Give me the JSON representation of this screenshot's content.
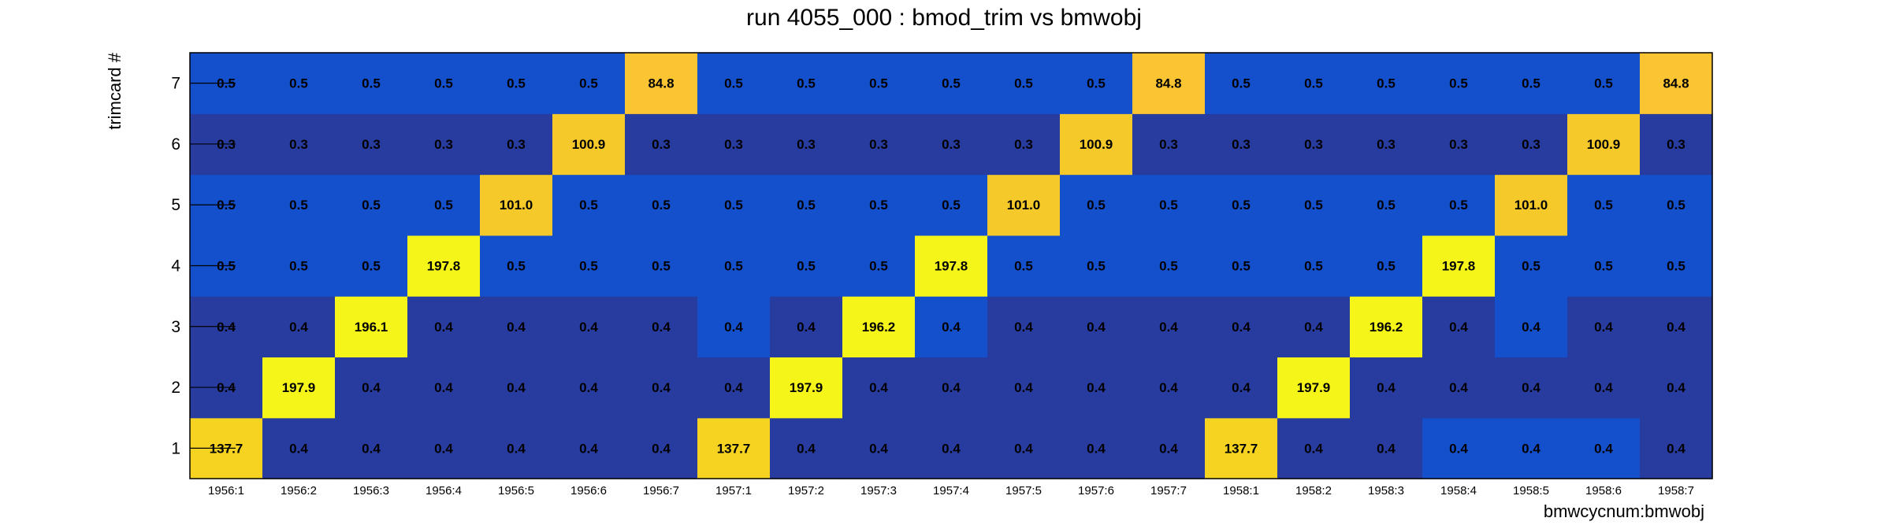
{
  "chart_data": {
    "type": "heatmap",
    "title": "run 4055_000 : bmod_trim vs bmwobj",
    "xlabel": "bmwcycnum:bmwobj",
    "ylabel": "trimcard #",
    "x_categories": [
      "1956:1",
      "1956:2",
      "1956:3",
      "1956:4",
      "1956:5",
      "1956:6",
      "1956:7",
      "1957:1",
      "1957:2",
      "1957:3",
      "1957:4",
      "1957:5",
      "1957:6",
      "1957:7",
      "1958:1",
      "1958:2",
      "1958:3",
      "1958:4",
      "1958:5",
      "1958:6",
      "1958:7"
    ],
    "y_categories": [
      "1",
      "2",
      "3",
      "4",
      "5",
      "6",
      "7"
    ],
    "values": [
      [
        137.7,
        0.4,
        0.4,
        0.4,
        0.4,
        0.4,
        0.4,
        137.7,
        0.4,
        0.4,
        0.4,
        0.4,
        0.4,
        0.4,
        137.7,
        0.4,
        0.4,
        0.4,
        0.4,
        0.4,
        0.4
      ],
      [
        0.4,
        197.9,
        0.4,
        0.4,
        0.4,
        0.4,
        0.4,
        0.4,
        197.9,
        0.4,
        0.4,
        0.4,
        0.4,
        0.4,
        0.4,
        197.9,
        0.4,
        0.4,
        0.4,
        0.4,
        0.4
      ],
      [
        0.4,
        0.4,
        196.1,
        0.4,
        0.4,
        0.4,
        0.4,
        0.4,
        0.4,
        196.2,
        0.4,
        0.4,
        0.4,
        0.4,
        0.4,
        0.4,
        196.2,
        0.4,
        0.4,
        0.4,
        0.4
      ],
      [
        0.5,
        0.5,
        0.5,
        197.8,
        0.5,
        0.5,
        0.5,
        0.5,
        0.5,
        0.5,
        197.8,
        0.5,
        0.5,
        0.5,
        0.5,
        0.5,
        0.5,
        197.8,
        0.5,
        0.5,
        0.5
      ],
      [
        0.5,
        0.5,
        0.5,
        0.5,
        101.0,
        0.5,
        0.5,
        0.5,
        0.5,
        0.5,
        0.5,
        101.0,
        0.5,
        0.5,
        0.5,
        0.5,
        0.5,
        0.5,
        101.0,
        0.5,
        0.5
      ],
      [
        0.3,
        0.3,
        0.3,
        0.3,
        0.3,
        100.9,
        0.3,
        0.3,
        0.3,
        0.3,
        0.3,
        0.3,
        100.9,
        0.3,
        0.3,
        0.3,
        0.3,
        0.3,
        0.3,
        100.9,
        0.3
      ],
      [
        0.5,
        0.5,
        0.5,
        0.5,
        0.5,
        0.5,
        84.8,
        0.5,
        0.5,
        0.5,
        0.5,
        0.5,
        0.5,
        84.8,
        0.5,
        0.5,
        0.5,
        0.5,
        0.5,
        0.5,
        84.8
      ]
    ],
    "value_labels": [
      [
        "137.7",
        "0.4",
        "0.4",
        "0.4",
        "0.4",
        "0.4",
        "0.4",
        "137.7",
        "0.4",
        "0.4",
        "0.4",
        "0.4",
        "0.4",
        "0.4",
        "137.7",
        "0.4",
        "0.4",
        "0.4",
        "0.4",
        "0.4",
        "0.4"
      ],
      [
        "0.4",
        "197.9",
        "0.4",
        "0.4",
        "0.4",
        "0.4",
        "0.4",
        "0.4",
        "197.9",
        "0.4",
        "0.4",
        "0.4",
        "0.4",
        "0.4",
        "0.4",
        "197.9",
        "0.4",
        "0.4",
        "0.4",
        "0.4",
        "0.4"
      ],
      [
        "0.4",
        "0.4",
        "196.1",
        "0.4",
        "0.4",
        "0.4",
        "0.4",
        "0.4",
        "0.4",
        "196.2",
        "0.4",
        "0.4",
        "0.4",
        "0.4",
        "0.4",
        "0.4",
        "196.2",
        "0.4",
        "0.4",
        "0.4",
        "0.4"
      ],
      [
        "0.5",
        "0.5",
        "0.5",
        "197.8",
        "0.5",
        "0.5",
        "0.5",
        "0.5",
        "0.5",
        "0.5",
        "197.8",
        "0.5",
        "0.5",
        "0.5",
        "0.5",
        "0.5",
        "0.5",
        "197.8",
        "0.5",
        "0.5",
        "0.5"
      ],
      [
        "0.5",
        "0.5",
        "0.5",
        "0.5",
        "101.0",
        "0.5",
        "0.5",
        "0.5",
        "0.5",
        "0.5",
        "0.5",
        "101.0",
        "0.5",
        "0.5",
        "0.5",
        "0.5",
        "0.5",
        "0.5",
        "101.0",
        "0.5",
        "0.5"
      ],
      [
        "0.3",
        "0.3",
        "0.3",
        "0.3",
        "0.3",
        "100.9",
        "0.3",
        "0.3",
        "0.3",
        "0.3",
        "0.3",
        "0.3",
        "100.9",
        "0.3",
        "0.3",
        "0.3",
        "0.3",
        "0.3",
        "0.3",
        "100.9",
        "0.3"
      ],
      [
        "0.5",
        "0.5",
        "0.5",
        "0.5",
        "0.5",
        "0.5",
        "84.8",
        "0.5",
        "0.5",
        "0.5",
        "0.5",
        "0.5",
        "0.5",
        "84.8",
        "0.5",
        "0.5",
        "0.5",
        "0.5",
        "0.5",
        "0.5",
        "84.8"
      ]
    ],
    "cell_colors": [
      [
        "#f6d321",
        "#283ca0",
        "#283ca0",
        "#283ca0",
        "#283ca0",
        "#283ca0",
        "#283ca0",
        "#f6d321",
        "#283ca0",
        "#283ca0",
        "#283ca0",
        "#283ca0",
        "#283ca0",
        "#283ca0",
        "#f6d321",
        "#283ca0",
        "#283ca0",
        "#1450cc",
        "#1450cc",
        "#1450cc",
        "#283ca0"
      ],
      [
        "#283ca0",
        "#f5f519",
        "#283ca0",
        "#283ca0",
        "#283ca0",
        "#283ca0",
        "#283ca0",
        "#283ca0",
        "#f5f519",
        "#283ca0",
        "#283ca0",
        "#283ca0",
        "#283ca0",
        "#283ca0",
        "#283ca0",
        "#f5f519",
        "#283ca0",
        "#283ca0",
        "#283ca0",
        "#283ca0",
        "#283ca0"
      ],
      [
        "#283ca0",
        "#283ca0",
        "#f5f519",
        "#283ca0",
        "#283ca0",
        "#283ca0",
        "#283ca0",
        "#1450cc",
        "#283ca0",
        "#f5f519",
        "#1450cc",
        "#283ca0",
        "#283ca0",
        "#283ca0",
        "#283ca0",
        "#283ca0",
        "#f5f519",
        "#283ca0",
        "#1450cc",
        "#283ca0",
        "#283ca0"
      ],
      [
        "#1450cc",
        "#1450cc",
        "#1450cc",
        "#f5f519",
        "#1450cc",
        "#1450cc",
        "#1450cc",
        "#1450cc",
        "#1450cc",
        "#1450cc",
        "#f5f519",
        "#1450cc",
        "#1450cc",
        "#1450cc",
        "#1450cc",
        "#1450cc",
        "#1450cc",
        "#f5f519",
        "#1450cc",
        "#1450cc",
        "#1450cc"
      ],
      [
        "#1450cc",
        "#1450cc",
        "#1450cc",
        "#1450cc",
        "#f6c92a",
        "#1450cc",
        "#1450cc",
        "#1450cc",
        "#1450cc",
        "#1450cc",
        "#1450cc",
        "#f6c92a",
        "#1450cc",
        "#1450cc",
        "#1450cc",
        "#1450cc",
        "#1450cc",
        "#1450cc",
        "#f6c92a",
        "#1450cc",
        "#1450cc"
      ],
      [
        "#283ca0",
        "#283ca0",
        "#283ca0",
        "#283ca0",
        "#283ca0",
        "#f6c92a",
        "#283ca0",
        "#283ca0",
        "#283ca0",
        "#283ca0",
        "#283ca0",
        "#283ca0",
        "#f6c92a",
        "#283ca0",
        "#283ca0",
        "#283ca0",
        "#283ca0",
        "#283ca0",
        "#283ca0",
        "#f6c92a",
        "#283ca0"
      ],
      [
        "#1450cc",
        "#1450cc",
        "#1450cc",
        "#1450cc",
        "#1450cc",
        "#1450cc",
        "#fac432",
        "#1450cc",
        "#1450cc",
        "#1450cc",
        "#1450cc",
        "#1450cc",
        "#1450cc",
        "#fac432",
        "#1450cc",
        "#1450cc",
        "#1450cc",
        "#1450cc",
        "#1450cc",
        "#1450cc",
        "#fac432"
      ]
    ],
    "grid": false,
    "legend": "none"
  }
}
